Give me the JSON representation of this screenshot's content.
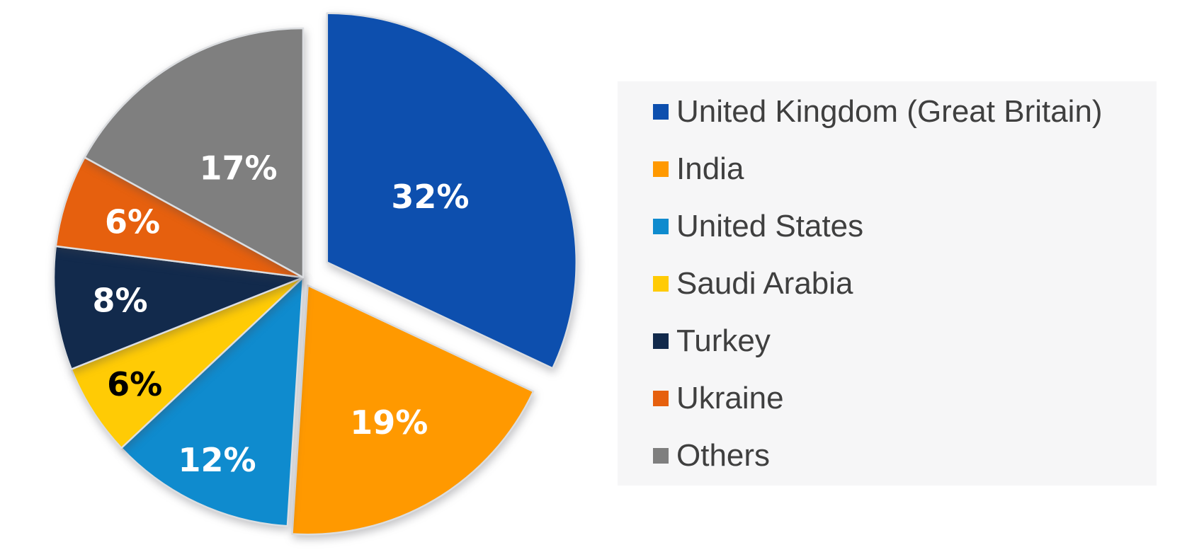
{
  "chart_data": {
    "type": "pie",
    "title": "",
    "categories": [
      "United Kingdom (Great Britain)",
      "India",
      "United States",
      "Saudi Arabia",
      "Turkey",
      "Ukraine",
      "Others"
    ],
    "values": [
      32,
      19,
      12,
      6,
      8,
      6,
      17
    ],
    "data_labels": [
      "32%",
      "19%",
      "12%",
      "6%",
      "8%",
      "6%",
      "17%"
    ],
    "colors": [
      "#0d4fae",
      "#ff9900",
      "#0f8bce",
      "#ffcb05",
      "#122a4c",
      "#e6600e",
      "#7f7f7f"
    ],
    "data_label_colors": [
      "#ffffff",
      "#ffffff",
      "#ffffff",
      "#000000",
      "#ffffff",
      "#ffffff",
      "#ffffff"
    ],
    "start_angle_deg": 0,
    "direction": "clockwise",
    "legend_position": "right",
    "exploded_slices": [
      "United Kingdom (Great Britain)",
      "India"
    ],
    "styles": {
      "background": "#ffffff",
      "legend_panel_color": "#f6f6f7",
      "legend_text_color": "#3f3f3f",
      "slice_gap_color": "#dcdee1"
    }
  }
}
